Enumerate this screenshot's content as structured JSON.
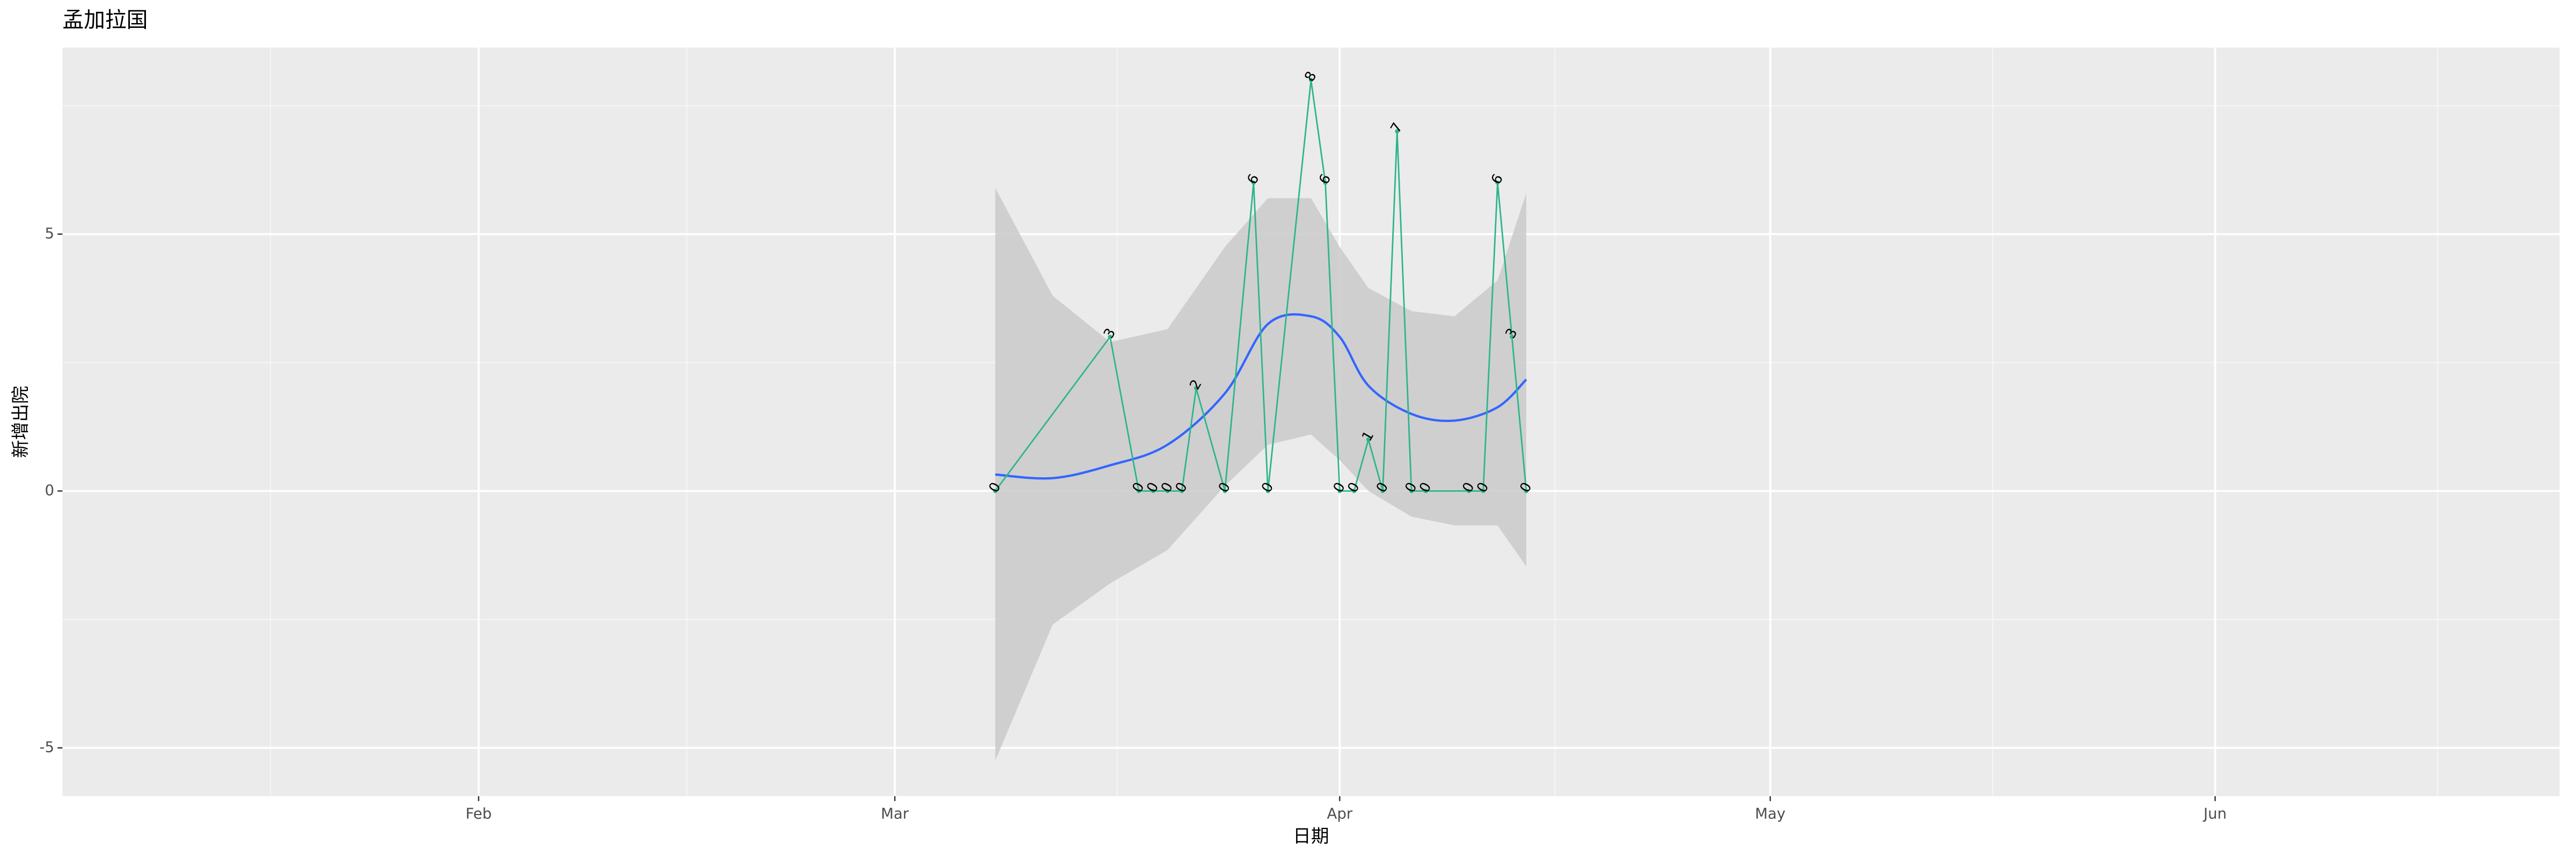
{
  "chart_data": {
    "type": "line",
    "title": "孟加拉国",
    "x_label": "日期",
    "y_label": "新增出院",
    "x": [
      "03-08",
      "03-16",
      "03-18",
      "03-19",
      "03-20",
      "03-21",
      "03-22",
      "03-24",
      "03-26",
      "03-27",
      "03-30",
      "03-31",
      "04-01",
      "04-02",
      "04-03",
      "04-04",
      "04-05",
      "04-06",
      "04-07",
      "04-10",
      "04-11",
      "04-12",
      "04-13",
      "04-14"
    ],
    "values": [
      0,
      3,
      0,
      0,
      0,
      0,
      2,
      0,
      6,
      0,
      8,
      6,
      0,
      0,
      1,
      0,
      7,
      0,
      0,
      0,
      0,
      6,
      3,
      0
    ],
    "color": "#2cb58c",
    "smooth": {
      "x": [
        "03-08",
        "03-12",
        "03-16",
        "03-20",
        "03-24",
        "03-27",
        "03-30",
        "04-01",
        "04-03",
        "04-06",
        "04-09",
        "04-12",
        "04-14"
      ],
      "y": [
        0.32,
        0.25,
        0.5,
        0.9,
        1.9,
        3.25,
        3.4,
        3.0,
        2.05,
        1.5,
        1.37,
        1.63,
        2.17
      ],
      "ymin": [
        -5.25,
        -2.6,
        -1.8,
        -1.15,
        0.1,
        0.9,
        1.1,
        0.6,
        0,
        -0.5,
        -0.67,
        -0.67,
        -1.47
      ],
      "ymax": [
        5.9,
        3.8,
        2.9,
        3.15,
        4.75,
        5.7,
        5.7,
        4.75,
        3.95,
        3.5,
        3.4,
        4.1,
        5.8
      ],
      "color": "#3366ff",
      "fill": "#cccccc"
    },
    "xlim": [
      "01-03",
      "06-25"
    ],
    "xticks": [
      {
        "value": "02-01",
        "label": "Feb"
      },
      {
        "value": "03-01",
        "label": "Mar"
      },
      {
        "value": "04-01",
        "label": "Apr"
      },
      {
        "value": "05-01",
        "label": "May"
      },
      {
        "value": "06-01",
        "label": "Jun"
      }
    ],
    "ylim": [
      -5.94,
      8.63
    ],
    "yticks": [
      -5,
      0,
      5
    ],
    "grid": true
  }
}
